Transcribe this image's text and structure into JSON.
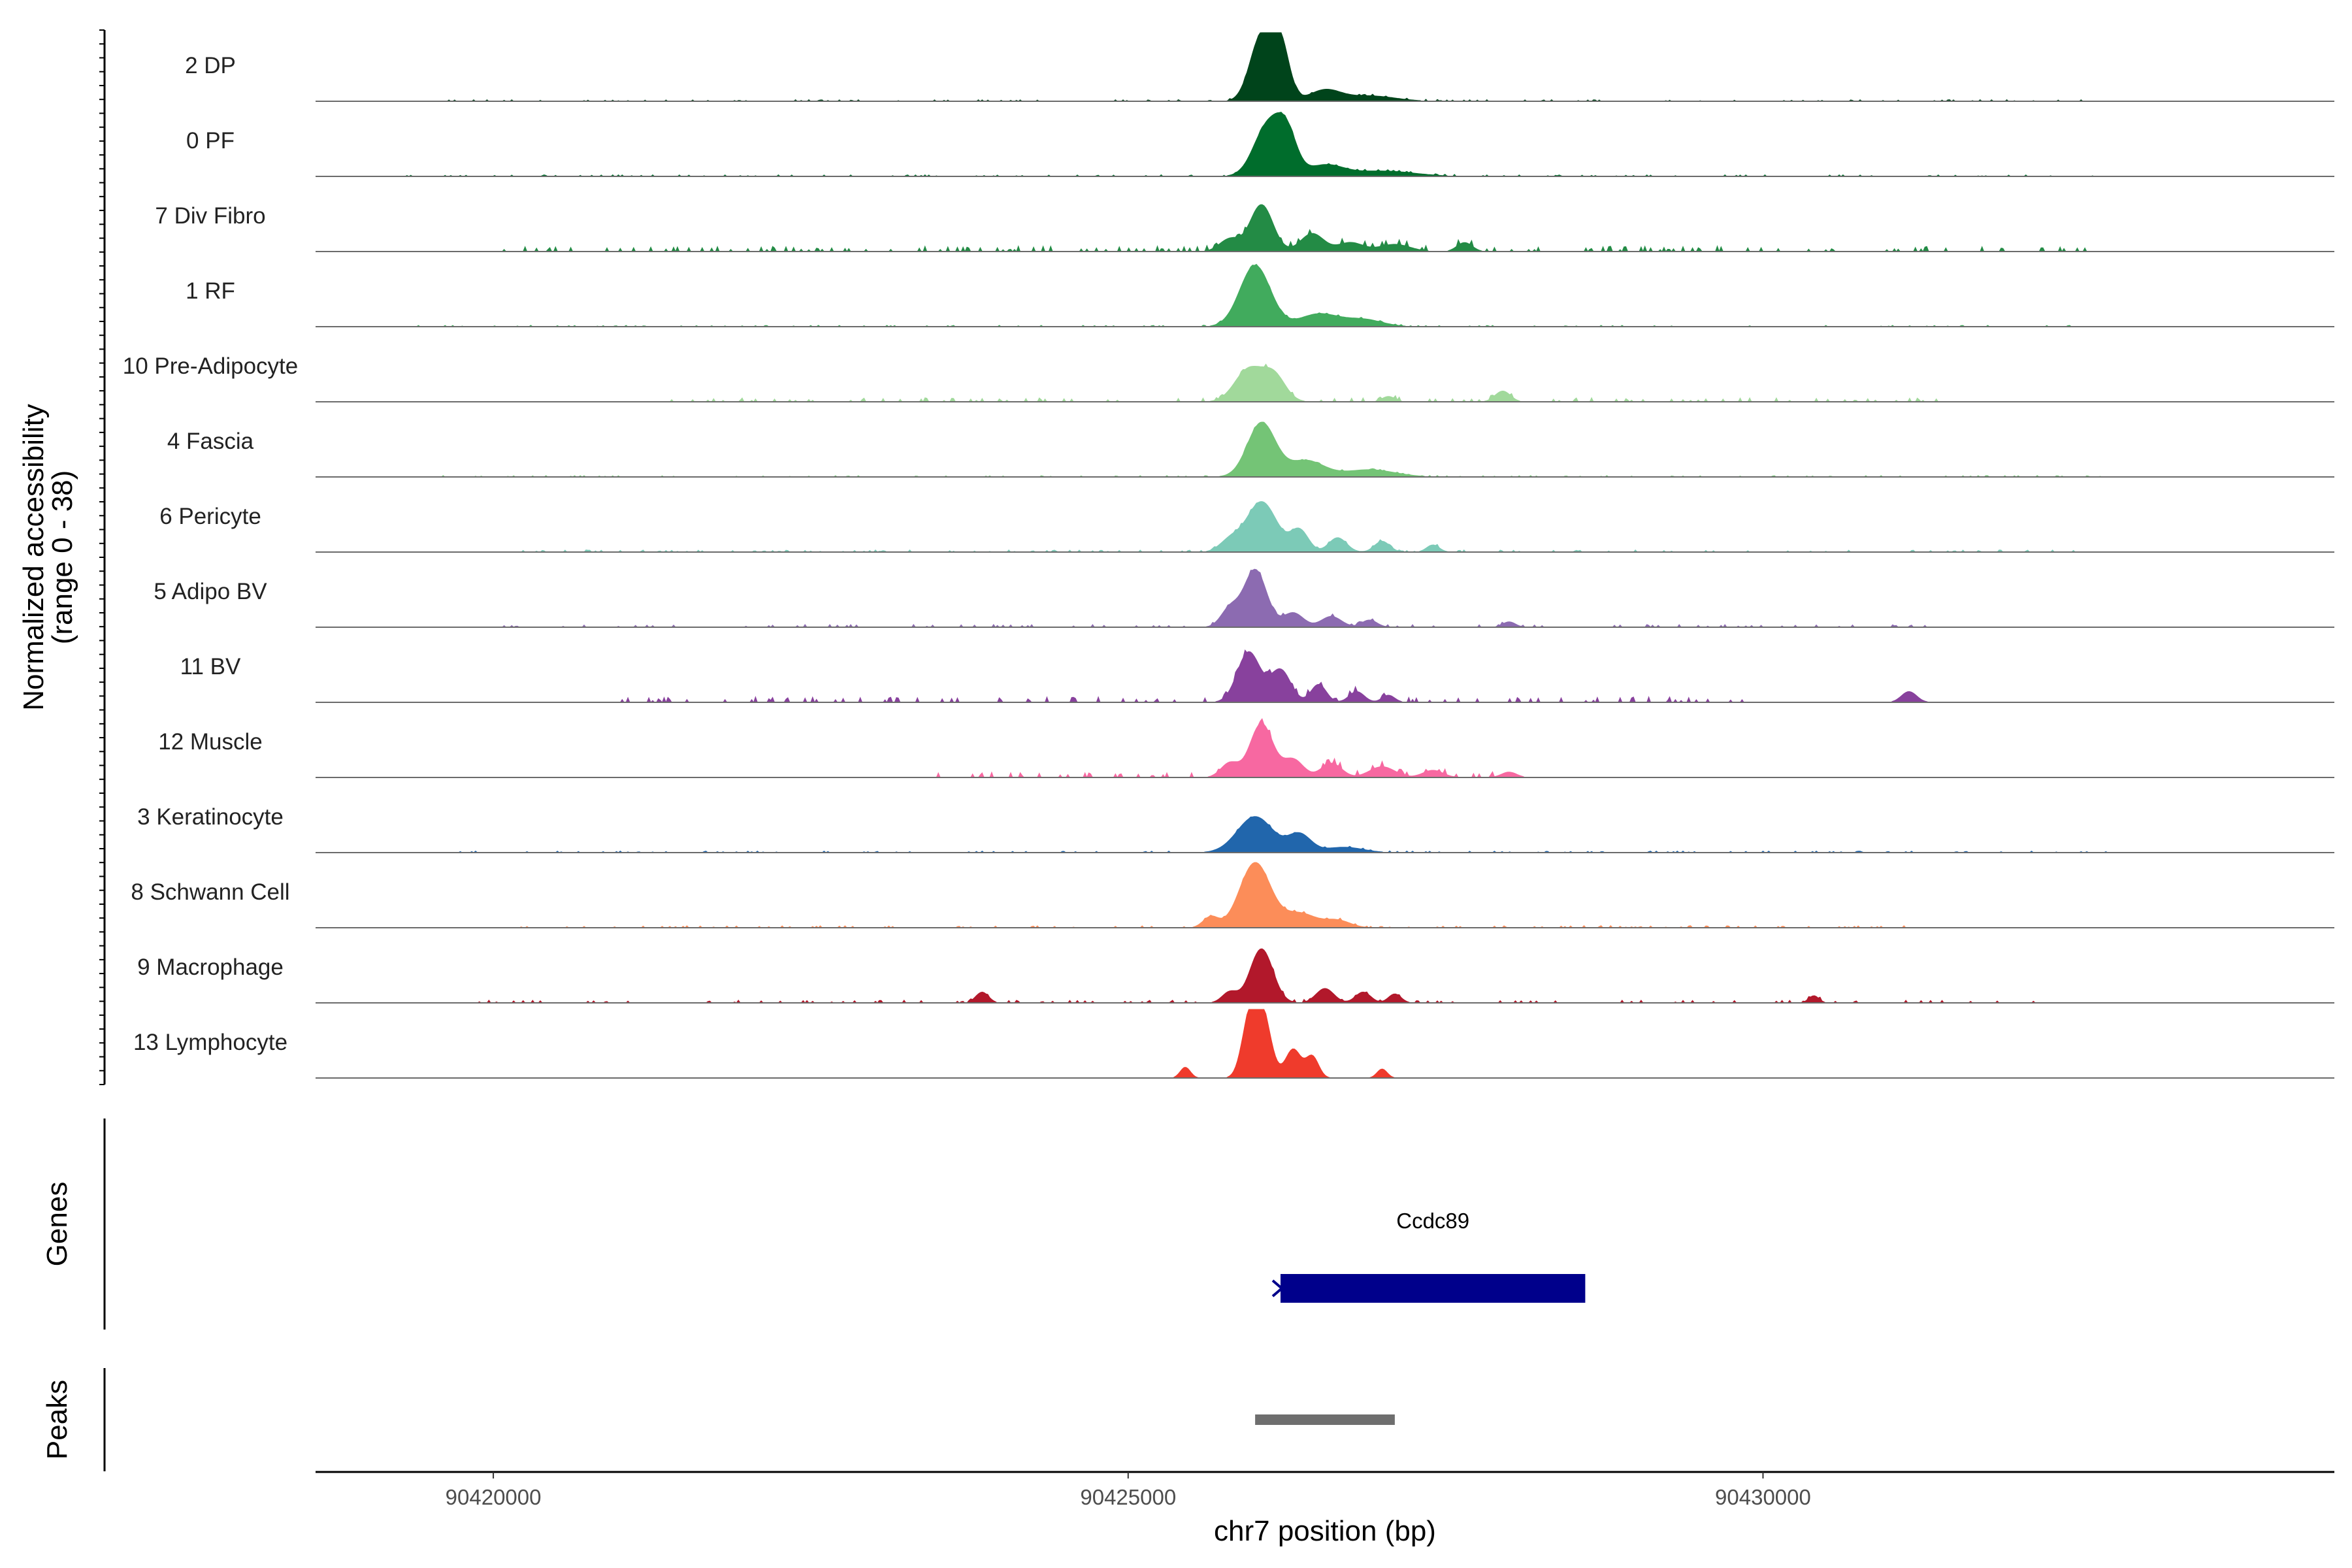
{
  "chart_data": {
    "type": "area",
    "ylabel": "Normalized accessibility\n(range 0 - 38)",
    "ylim": [
      0,
      38
    ],
    "xlabel": "chr7 position (bp)",
    "xlim": [
      90418600,
      90434500
    ],
    "xticks": [
      {
        "value": 90420000,
        "label": "90420000"
      },
      {
        "value": 90425000,
        "label": "90425000"
      },
      {
        "value": 90430000,
        "label": "90430000"
      }
    ],
    "tracks": [
      {
        "name": "2 DP",
        "color": "#00441b",
        "peaks": [
          [
            90426050,
            36,
            90
          ],
          [
            90426200,
            30,
            70
          ],
          [
            90426550,
            6,
            120
          ],
          [
            90426900,
            3,
            200
          ]
        ],
        "noise": [
          [
            90419600,
            90432700,
            0.6
          ]
        ]
      },
      {
        "name": "0 PF",
        "color": "#006d2c",
        "peaks": [
          [
            90426100,
            28,
            110
          ],
          [
            90426250,
            20,
            80
          ],
          [
            90426550,
            6,
            140
          ],
          [
            90427000,
            3,
            250
          ]
        ],
        "noise": [
          [
            90419300,
            90432700,
            0.6
          ]
        ]
      },
      {
        "name": "7 Div Fibro",
        "color": "#238b45",
        "peaks": [
          [
            90426050,
            26,
            90
          ],
          [
            90425800,
            7,
            80
          ],
          [
            90426450,
            10,
            90
          ],
          [
            90426750,
            5,
            100
          ],
          [
            90427100,
            4,
            120
          ],
          [
            90427650,
            5,
            60
          ]
        ],
        "noise": [
          [
            90420000,
            90432700,
            2.0
          ]
        ]
      },
      {
        "name": "1 RF",
        "color": "#41ab5d",
        "peaks": [
          [
            90426000,
            34,
            120
          ],
          [
            90426500,
            7,
            150
          ],
          [
            90426850,
            4,
            150
          ]
        ],
        "noise": [
          [
            90419400,
            90432700,
            0.5
          ]
        ]
      },
      {
        "name": "10 Pre-Adipocyte",
        "color": "#a1d99b",
        "peaks": [
          [
            90425950,
            18,
            110
          ],
          [
            90426150,
            14,
            90
          ],
          [
            90427050,
            3,
            50
          ],
          [
            90427950,
            6,
            60
          ]
        ],
        "noise": [
          [
            90421400,
            90431400,
            1.5
          ]
        ]
      },
      {
        "name": "4 Fascia",
        "color": "#74c476",
        "peaks": [
          [
            90426050,
            30,
            110
          ],
          [
            90426400,
            9,
            140
          ],
          [
            90426900,
            4,
            200
          ]
        ],
        "noise": [
          [
            90419500,
            90432700,
            0.5
          ]
        ]
      },
      {
        "name": "6 Pericyte",
        "color": "#7ccab7",
        "peaks": [
          [
            90426050,
            28,
            120
          ],
          [
            90425800,
            6,
            80
          ],
          [
            90426350,
            12,
            70
          ],
          [
            90426650,
            8,
            70
          ],
          [
            90427000,
            6,
            60
          ],
          [
            90427400,
            4,
            50
          ]
        ],
        "noise": [
          [
            90420200,
            90432700,
            0.8
          ]
        ]
      },
      {
        "name": "5 Adipo BV",
        "color": "#8c6bb1",
        "peaks": [
          [
            90426000,
            32,
            90
          ],
          [
            90425800,
            10,
            70
          ],
          [
            90426300,
            8,
            80
          ],
          [
            90426600,
            6,
            80
          ],
          [
            90426900,
            4,
            60
          ],
          [
            90428000,
            3,
            50
          ]
        ],
        "noise": [
          [
            90419900,
            90431300,
            1.0
          ]
        ]
      },
      {
        "name": "11 BV",
        "color": "#88419d",
        "peaks": [
          [
            90425950,
            28,
            90
          ],
          [
            90426200,
            18,
            80
          ],
          [
            90426500,
            10,
            60
          ],
          [
            90426800,
            6,
            60
          ],
          [
            90427050,
            4,
            50
          ],
          [
            90431150,
            6,
            60
          ]
        ],
        "noise": [
          [
            90420800,
            90430000,
            2.0
          ]
        ]
      },
      {
        "name": "12 Muscle",
        "color": "#f768a1",
        "peaks": [
          [
            90426050,
            30,
            90
          ],
          [
            90425800,
            8,
            70
          ],
          [
            90426300,
            10,
            80
          ],
          [
            90426600,
            8,
            80
          ],
          [
            90427000,
            6,
            100
          ],
          [
            90427400,
            4,
            80
          ],
          [
            90428000,
            3,
            60
          ]
        ],
        "noise": [
          [
            90423400,
            90427900,
            2.0
          ]
        ]
      },
      {
        "name": "3 Keratinocyte",
        "color": "#2166ac",
        "peaks": [
          [
            90426000,
            20,
            140
          ],
          [
            90426350,
            10,
            90
          ],
          [
            90426700,
            3,
            150
          ]
        ],
        "noise": [
          [
            90419700,
            90432700,
            0.6
          ]
        ]
      },
      {
        "name": "8 Schwann Cell",
        "color": "#fc8d59",
        "peaks": [
          [
            90426000,
            36,
            120
          ],
          [
            90425650,
            6,
            60
          ],
          [
            90426350,
            8,
            130
          ],
          [
            90426650,
            4,
            100
          ]
        ],
        "noise": [
          [
            90420100,
            90431200,
            0.8
          ]
        ]
      },
      {
        "name": "9 Macrophage",
        "color": "#b2182b",
        "peaks": [
          [
            90426050,
            30,
            90
          ],
          [
            90425800,
            6,
            60
          ],
          [
            90426550,
            8,
            70
          ],
          [
            90426850,
            6,
            60
          ],
          [
            90427100,
            5,
            50
          ],
          [
            90430400,
            4,
            40
          ],
          [
            90423850,
            6,
            50
          ]
        ],
        "noise": [
          [
            90419600,
            90432200,
            1.0
          ]
        ]
      },
      {
        "name": "13 Lymphocyte",
        "color": "#ef3b2c",
        "peaks": [
          [
            90426050,
            38,
            70
          ],
          [
            90425950,
            26,
            60
          ],
          [
            90426300,
            16,
            60
          ],
          [
            90426450,
            12,
            50
          ],
          [
            90427000,
            5,
            40
          ],
          [
            90425450,
            6,
            40
          ]
        ],
        "noise": []
      }
    ],
    "genes": [
      {
        "name": "Ccdc89",
        "start": 90426200,
        "end": 90428600,
        "color": "#00008b"
      }
    ],
    "genes_label": "Genes",
    "peaks_label": "Peaks",
    "peak_regions": [
      {
        "start": 90426000,
        "end": 90427100,
        "color": "#6e6e6e"
      }
    ]
  }
}
